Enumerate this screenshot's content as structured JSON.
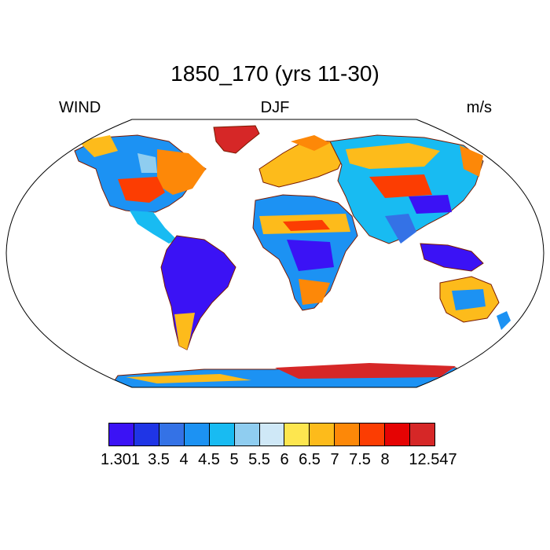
{
  "title": "1850_170 (yrs 11-30)",
  "left_label": "WIND",
  "center_label": "DJF",
  "right_label": "m/s",
  "colorbar": {
    "colors": [
      "#3b12f5",
      "#1f35e6",
      "#3472e6",
      "#1c92f3",
      "#18bbf2",
      "#8fcdf0",
      "#cfe8f7",
      "#fde64f",
      "#fdbb1b",
      "#fd8808",
      "#fc3d02",
      "#e50303",
      "#d62727"
    ],
    "tick_labels": [
      "1.301",
      "3.5",
      "4",
      "4.5",
      "5",
      "5.5",
      "6",
      "6.5",
      "7",
      "7.5",
      "8",
      "12.547"
    ]
  }
}
